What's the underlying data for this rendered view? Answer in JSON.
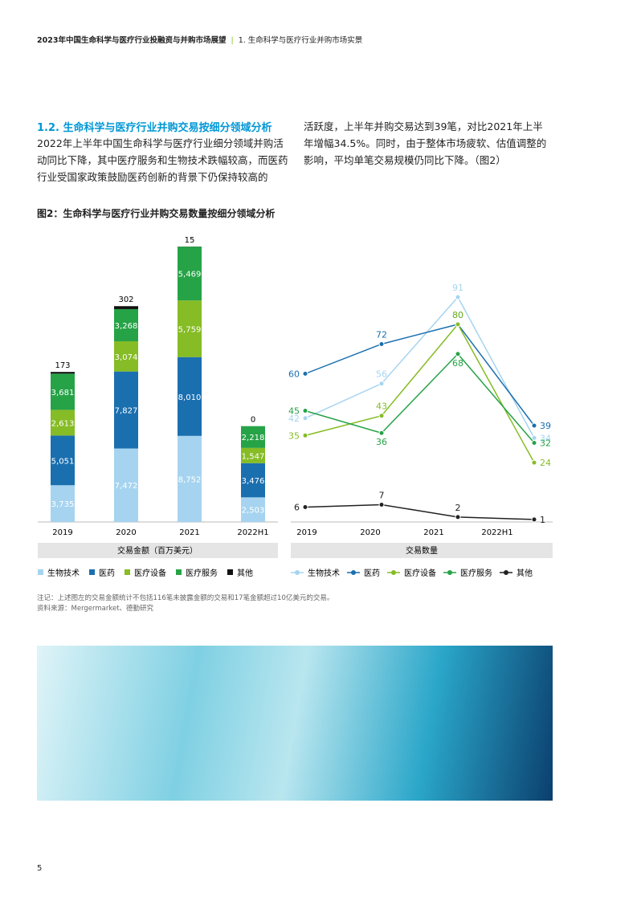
{
  "header": {
    "title": "2023年中国生命科学与医疗行业投融资与并购市场展望",
    "section": "1. 生命科学与医疗行业并购市场实景"
  },
  "heading": "1.2. 生命科学与医疗行业并购交易按细分领域分析",
  "paragraphs": [
    "2022年上半年中国生命科学与医疗行业细分领域并购活动同比下降，其中医疗服务和生物技术跌幅较高，而医药行业受国家政策鼓励医药创新的背景下仍保持较高的",
    "活跃度，上半年并购交易达到39笔，对比2021年上半年增幅34.5%。同时，由于整体市场疲软、估值调整的影响，平均单笔交易规模仍同比下降。（图2）"
  ],
  "figure_title": "图2：生命科学与医疗行业并购交易数量按细分领域分析",
  "chart_data": [
    {
      "type": "stacked-bar",
      "x_label": "交易金额（百万美元）",
      "categories": [
        "2019",
        "2020",
        "2021",
        "2022H1"
      ],
      "series": [
        {
          "name": "生物技术",
          "color": "#a6d4f0",
          "values": [
            3735,
            7472,
            8752,
            2503
          ],
          "value_labels": [
            "3,735",
            "7,472",
            "8,752",
            "2,503"
          ]
        },
        {
          "name": "医药",
          "color": "#1a6faf",
          "values": [
            5051,
            7827,
            8010,
            3476
          ],
          "value_labels": [
            "5,051",
            "7,827",
            "8,010",
            "3,476"
          ]
        },
        {
          "name": "医疗设备",
          "color": "#86bc25",
          "values": [
            2613,
            3074,
            5759,
            1547
          ],
          "value_labels": [
            "2,613",
            "3,074",
            "5,759",
            "1,547"
          ]
        },
        {
          "name": "医疗服务",
          "color": "#26a347",
          "values": [
            3681,
            3268,
            5469,
            2218
          ],
          "value_labels": [
            "3,681",
            "3,268",
            "5,469",
            "2,218"
          ]
        },
        {
          "name": "其他",
          "color": "#111111",
          "values": [
            173,
            302,
            15,
            0
          ]
        }
      ]
    },
    {
      "type": "line",
      "x_label": "交易数量",
      "categories": [
        "2019",
        "2020",
        "2021",
        "2022H1"
      ],
      "series": [
        {
          "name": "生物技术",
          "color": "#a6d4f0",
          "values": [
            42,
            56,
            91,
            34
          ]
        },
        {
          "name": "医药",
          "color": "#1a6faf",
          "values": [
            60,
            72,
            80,
            39
          ]
        },
        {
          "name": "医疗设备",
          "color": "#86bc25",
          "values": [
            35,
            43,
            80,
            24
          ]
        },
        {
          "name": "医疗服务",
          "color": "#26a347",
          "values": [
            45,
            36,
            68,
            32
          ]
        },
        {
          "name": "其他",
          "color": "#222222",
          "values": [
            6,
            7,
            2,
            1
          ]
        }
      ]
    }
  ],
  "notes": [
    "注记：上述图左的交易金额统计不包括116笔未披露金额的交易和17笔金额超过10亿美元的交易。",
    "资料来源：Mergermarket、德勤研究"
  ],
  "page_number": "5"
}
